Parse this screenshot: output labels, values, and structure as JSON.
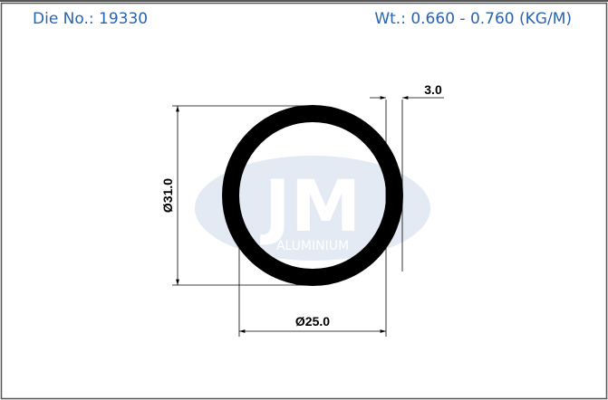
{
  "header": {
    "die_no": "Die No.: 19330",
    "weight": "Wt.: 0.660 - 0.760 (KG/M)"
  },
  "watermark": {
    "logo": "JM",
    "brand": "ALUMINIUM"
  },
  "dimensions": {
    "thickness": "3.0",
    "outer_diameter": "Ø31.0",
    "inner_diameter": "Ø25.0"
  }
}
